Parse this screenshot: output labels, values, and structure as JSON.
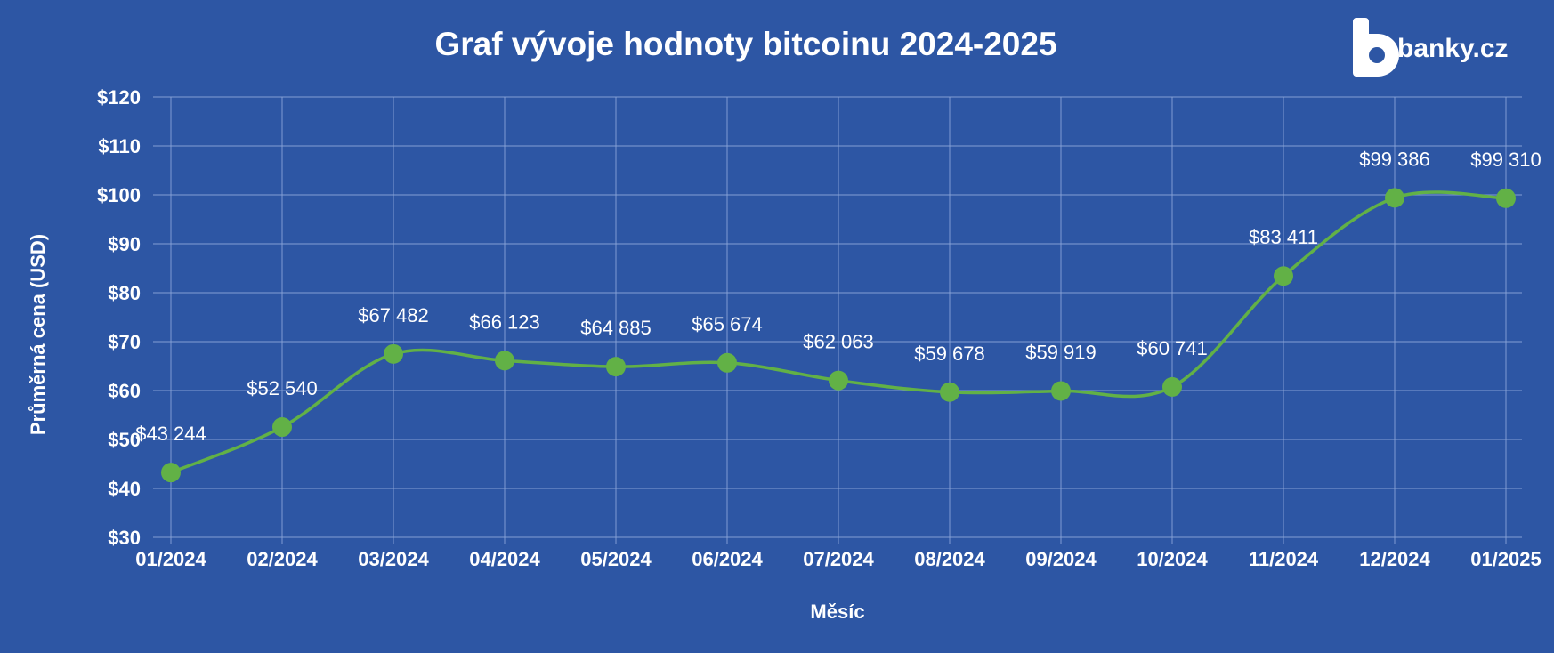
{
  "colors": {
    "background": "#2d56a4",
    "line": "#62b146",
    "text": "#ffffff",
    "grid": "#8aa4d8"
  },
  "brand": {
    "name": "banky.cz",
    "icon": "banky-logo-icon"
  },
  "chart_data": {
    "type": "line",
    "title": "Graf vývoje hodnoty bitcoinu 2024-2025",
    "xlabel": "Měsíc",
    "ylabel": "Průměrná cena (USD)",
    "categories": [
      "01/2024",
      "02/2024",
      "03/2024",
      "04/2024",
      "05/2024",
      "06/2024",
      "07/2024",
      "08/2024",
      "09/2024",
      "10/2024",
      "11/2024",
      "12/2024",
      "01/2025"
    ],
    "y_ticks": [
      "$30",
      "$40",
      "$50",
      "$60",
      "$70",
      "$80",
      "$90",
      "$100",
      "$110",
      "$120"
    ],
    "ylim": [
      30,
      120
    ],
    "grid": true,
    "series": [
      {
        "values": [
          43244,
          52540,
          67482,
          66123,
          64885,
          65674,
          62063,
          59678,
          59919,
          60741,
          83411,
          99386,
          99310
        ],
        "labels": [
          "$43 244",
          "$52 540",
          "$67 482",
          "$66 123",
          "$64 885",
          "$65 674",
          "$62 063",
          "$59 678",
          "$59 919",
          "$60 741",
          "$83 411",
          "$99 386",
          "$99 310"
        ]
      }
    ]
  }
}
